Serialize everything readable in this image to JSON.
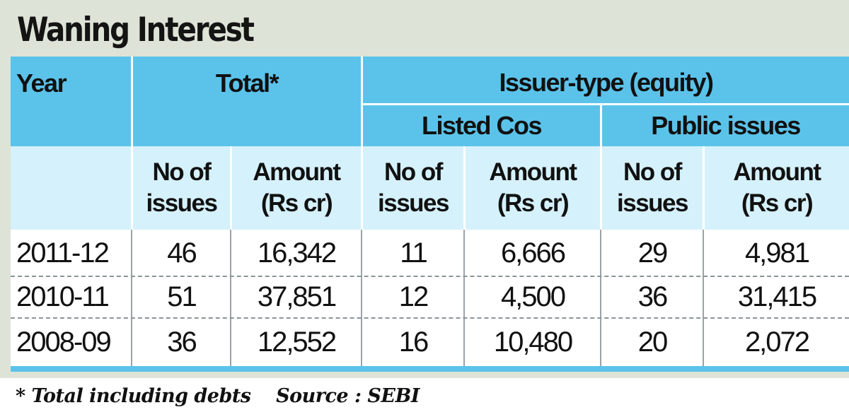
{
  "title": "Waning Interest",
  "chart_data": {
    "type": "table",
    "title": "Waning Interest",
    "header_groups": {
      "year": "Year",
      "total": "Total*",
      "issuer_type": "Issuer-type (equity)",
      "listed": "Listed Cos",
      "public": "Public issues"
    },
    "sub_headers": {
      "no_line1": "No of",
      "no_line2": "issues",
      "amt_line1": "Amount",
      "amt_line2": "(Rs cr)"
    },
    "columns": [
      "Year",
      "Total No of issues",
      "Total Amount (Rs cr)",
      "Listed Cos No of issues",
      "Listed Cos Amount (Rs cr)",
      "Public issues No of issues",
      "Public issues Amount (Rs cr)"
    ],
    "rows": [
      [
        "2011-12",
        "46",
        "16,342",
        "11",
        "6,666",
        "29",
        "4,981"
      ],
      [
        "2010-11",
        "51",
        "37,851",
        "12",
        "4,500",
        "36",
        "31,415"
      ],
      [
        "2008-09",
        "36",
        "12,552",
        "16",
        "10,480",
        "20",
        "2,072"
      ]
    ]
  },
  "footnote": "* Total including debts    Source : SEBI"
}
